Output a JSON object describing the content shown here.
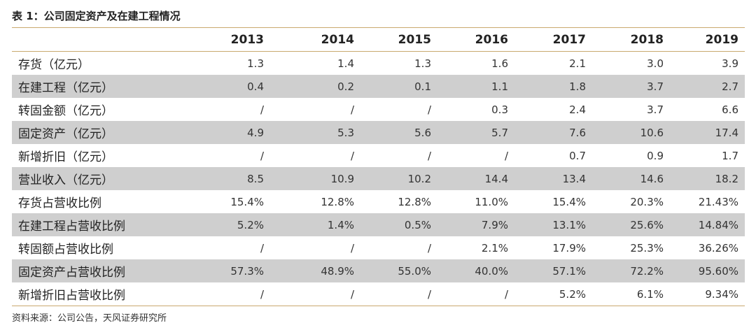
{
  "title": "表 1：公司固定资产及在建工程情况",
  "source": "资料来源：公司公告，天风证券研究所",
  "table": {
    "header": [
      "",
      "2013",
      "2014",
      "2015",
      "2016",
      "2017",
      "2018",
      "2019"
    ],
    "rows": [
      {
        "label": "存货（亿元）",
        "values": [
          "1.3",
          "1.4",
          "1.3",
          "1.6",
          "2.1",
          "3.0",
          "3.9"
        ]
      },
      {
        "label": "在建工程（亿元）",
        "values": [
          "0.4",
          "0.2",
          "0.1",
          "1.1",
          "1.8",
          "3.7",
          "2.7"
        ]
      },
      {
        "label": "转固金额（亿元）",
        "values": [
          "/",
          "/",
          "/",
          "0.3",
          "2.4",
          "3.7",
          "6.6"
        ]
      },
      {
        "label": "固定资产（亿元）",
        "values": [
          "4.9",
          "5.3",
          "5.6",
          "5.7",
          "7.6",
          "10.6",
          "17.4"
        ]
      },
      {
        "label": "新增折旧（亿元）",
        "values": [
          "/",
          "/",
          "/",
          "/",
          "0.7",
          "0.9",
          "1.7"
        ]
      },
      {
        "label": "营业收入（亿元）",
        "values": [
          "8.5",
          "10.9",
          "10.2",
          "14.4",
          "13.4",
          "14.6",
          "18.2"
        ]
      },
      {
        "label": "存货占营收比例",
        "values": [
          "15.4%",
          "12.8%",
          "12.8%",
          "11.0%",
          "15.4%",
          "20.3%",
          "21.43%"
        ]
      },
      {
        "label": "在建工程占营收比例",
        "values": [
          "5.2%",
          "1.4%",
          "0.5%",
          "7.9%",
          "13.1%",
          "25.6%",
          "14.84%"
        ]
      },
      {
        "label": "转固额占营收比例",
        "values": [
          "/",
          "/",
          "/",
          "2.1%",
          "17.9%",
          "25.3%",
          "36.26%"
        ]
      },
      {
        "label": "固定资产占营收比例",
        "values": [
          "57.3%",
          "48.9%",
          "55.0%",
          "40.0%",
          "57.1%",
          "72.2%",
          "95.60%"
        ]
      },
      {
        "label": "新增折旧占营收比例",
        "values": [
          "/",
          "/",
          "/",
          "/",
          "5.2%",
          "6.1%",
          "9.34%"
        ]
      }
    ]
  }
}
